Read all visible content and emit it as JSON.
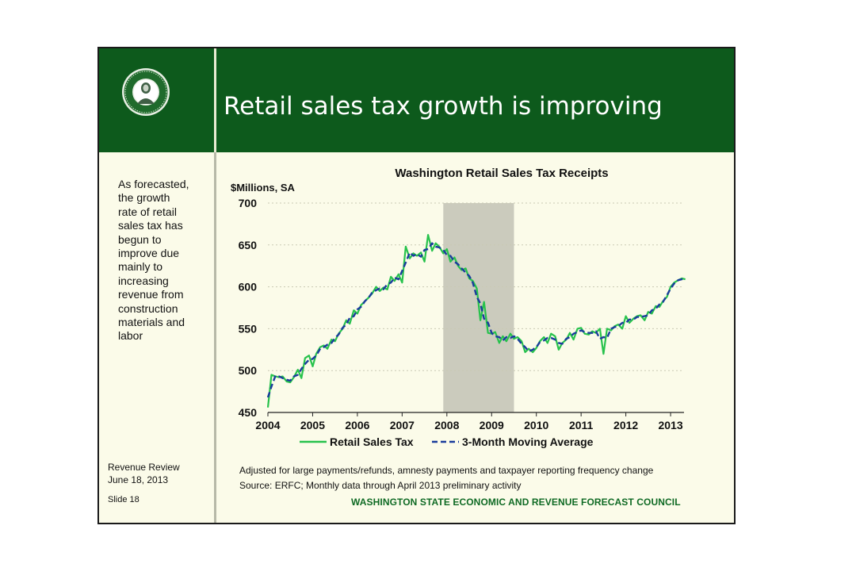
{
  "slide": {
    "title": "Retail sales tax growth is improving",
    "side_text": "As forecasted,\nthe growth\nrate of retail\nsales tax has\nbegun to\nimprove due\nmainly to\nincreasing\nrevenue from\nconstruction\nmaterials and\nlabor",
    "review_text": "Revenue Review\nJune 18, 2013",
    "slide_number": "Slide 18",
    "footnote_1": "Adjusted for large payments/refunds, amnesty payments and taxpayer reporting frequency change",
    "footnote_2": "Source: ERFC; Monthly data through April 2013 preliminary activity",
    "council": "WASHINGTON STATE ECONOMIC AND REVENUE FORECAST COUNCIL",
    "seal_icon": "washington-state-seal-icon",
    "colors": {
      "header_green": "#0d5a1c",
      "background": "#fbfbe9",
      "retail_line": "#27c24c",
      "moving_average": "#1a3c9c",
      "recession_band": "#cbcbbd"
    }
  },
  "chart_data": {
    "type": "line",
    "title": "Washington Retail Sales Tax Receipts",
    "ylabel": "$Millions, SA",
    "xlabel": "",
    "ylim": [
      450,
      700
    ],
    "yticks": [
      "450",
      "500",
      "550",
      "600",
      "650",
      "700"
    ],
    "xlim": [
      2004.0,
      2013.3
    ],
    "xticks": [
      "2004",
      "2005",
      "2006",
      "2007",
      "2008",
      "2009",
      "2010",
      "2011",
      "2012",
      "2013"
    ],
    "grid": true,
    "legend_position": "bottom",
    "shaded_regions": [
      {
        "x_start": 2007.92,
        "x_end": 2009.5
      }
    ],
    "series": [
      {
        "name": "Retail Sales Tax",
        "style": "solid",
        "points": [
          [
            2004.0,
            456
          ],
          [
            2004.08,
            495
          ],
          [
            2004.17,
            493
          ],
          [
            2004.25,
            492
          ],
          [
            2004.33,
            493
          ],
          [
            2004.42,
            487
          ],
          [
            2004.5,
            486
          ],
          [
            2004.58,
            492
          ],
          [
            2004.67,
            501
          ],
          [
            2004.75,
            491
          ],
          [
            2004.83,
            515
          ],
          [
            2004.92,
            518
          ],
          [
            2005.0,
            505
          ],
          [
            2005.08,
            520
          ],
          [
            2005.17,
            528
          ],
          [
            2005.25,
            530
          ],
          [
            2005.33,
            526
          ],
          [
            2005.42,
            537
          ],
          [
            2005.5,
            535
          ],
          [
            2005.58,
            544
          ],
          [
            2005.67,
            550
          ],
          [
            2005.75,
            560
          ],
          [
            2005.83,
            556
          ],
          [
            2005.92,
            572
          ],
          [
            2006.0,
            568
          ],
          [
            2006.08,
            578
          ],
          [
            2006.17,
            583
          ],
          [
            2006.25,
            587
          ],
          [
            2006.33,
            592
          ],
          [
            2006.42,
            600
          ],
          [
            2006.5,
            595
          ],
          [
            2006.58,
            599
          ],
          [
            2006.67,
            597
          ],
          [
            2006.75,
            612
          ],
          [
            2006.83,
            607
          ],
          [
            2006.92,
            615
          ],
          [
            2007.0,
            605
          ],
          [
            2007.08,
            648
          ],
          [
            2007.17,
            634
          ],
          [
            2007.25,
            640
          ],
          [
            2007.33,
            637
          ],
          [
            2007.42,
            641
          ],
          [
            2007.5,
            630
          ],
          [
            2007.58,
            662
          ],
          [
            2007.67,
            643
          ],
          [
            2007.75,
            652
          ],
          [
            2007.83,
            648
          ],
          [
            2007.92,
            640
          ],
          [
            2008.0,
            645
          ],
          [
            2008.08,
            630
          ],
          [
            2008.17,
            635
          ],
          [
            2008.25,
            625
          ],
          [
            2008.33,
            620
          ],
          [
            2008.42,
            622
          ],
          [
            2008.5,
            610
          ],
          [
            2008.58,
            607
          ],
          [
            2008.67,
            598
          ],
          [
            2008.75,
            560
          ],
          [
            2008.83,
            582
          ],
          [
            2008.92,
            545
          ],
          [
            2009.0,
            544
          ],
          [
            2009.08,
            546
          ],
          [
            2009.17,
            533
          ],
          [
            2009.25,
            541
          ],
          [
            2009.33,
            535
          ],
          [
            2009.42,
            544
          ],
          [
            2009.5,
            538
          ],
          [
            2009.58,
            540
          ],
          [
            2009.67,
            535
          ],
          [
            2009.75,
            522
          ],
          [
            2009.83,
            526
          ],
          [
            2009.92,
            522
          ],
          [
            2010.0,
            527
          ],
          [
            2010.08,
            535
          ],
          [
            2010.17,
            540
          ],
          [
            2010.25,
            533
          ],
          [
            2010.33,
            544
          ],
          [
            2010.42,
            541
          ],
          [
            2010.5,
            525
          ],
          [
            2010.58,
            533
          ],
          [
            2010.67,
            537
          ],
          [
            2010.75,
            545
          ],
          [
            2010.83,
            537
          ],
          [
            2010.92,
            550
          ],
          [
            2011.0,
            551
          ],
          [
            2011.08,
            544
          ],
          [
            2011.17,
            543
          ],
          [
            2011.25,
            547
          ],
          [
            2011.33,
            545
          ],
          [
            2011.42,
            550
          ],
          [
            2011.5,
            520
          ],
          [
            2011.58,
            550
          ],
          [
            2011.67,
            548
          ],
          [
            2011.75,
            553
          ],
          [
            2011.83,
            555
          ],
          [
            2011.92,
            550
          ],
          [
            2012.0,
            565
          ],
          [
            2012.08,
            557
          ],
          [
            2012.17,
            562
          ],
          [
            2012.25,
            565
          ],
          [
            2012.33,
            566
          ],
          [
            2012.42,
            560
          ],
          [
            2012.5,
            570
          ],
          [
            2012.58,
            568
          ],
          [
            2012.67,
            577
          ],
          [
            2012.75,
            576
          ],
          [
            2012.83,
            583
          ],
          [
            2012.92,
            588
          ],
          [
            2013.0,
            600
          ],
          [
            2013.08,
            605
          ],
          [
            2013.17,
            608
          ],
          [
            2013.25,
            610
          ],
          [
            2013.33,
            609
          ]
        ]
      },
      {
        "name": "3-Month Moving Average",
        "style": "dashed",
        "points": [
          [
            2004.0,
            468
          ],
          [
            2004.08,
            481
          ],
          [
            2004.17,
            494
          ],
          [
            2004.25,
            493
          ],
          [
            2004.33,
            491
          ],
          [
            2004.42,
            489
          ],
          [
            2004.5,
            488
          ],
          [
            2004.58,
            493
          ],
          [
            2004.67,
            495
          ],
          [
            2004.75,
            502
          ],
          [
            2004.83,
            508
          ],
          [
            2004.92,
            513
          ],
          [
            2005.0,
            514
          ],
          [
            2005.08,
            518
          ],
          [
            2005.17,
            526
          ],
          [
            2005.25,
            528
          ],
          [
            2005.33,
            531
          ],
          [
            2005.42,
            533
          ],
          [
            2005.5,
            539
          ],
          [
            2005.58,
            543
          ],
          [
            2005.67,
            551
          ],
          [
            2005.75,
            555
          ],
          [
            2005.83,
            563
          ],
          [
            2005.92,
            565
          ],
          [
            2006.0,
            573
          ],
          [
            2006.08,
            576
          ],
          [
            2006.17,
            583
          ],
          [
            2006.25,
            587
          ],
          [
            2006.33,
            593
          ],
          [
            2006.42,
            596
          ],
          [
            2006.5,
            598
          ],
          [
            2006.58,
            597
          ],
          [
            2006.67,
            603
          ],
          [
            2006.75,
            605
          ],
          [
            2006.83,
            611
          ],
          [
            2006.92,
            609
          ],
          [
            2007.0,
            619
          ],
          [
            2007.08,
            629
          ],
          [
            2007.17,
            641
          ],
          [
            2007.25,
            637
          ],
          [
            2007.33,
            639
          ],
          [
            2007.42,
            636
          ],
          [
            2007.5,
            644
          ],
          [
            2007.58,
            645
          ],
          [
            2007.67,
            652
          ],
          [
            2007.75,
            648
          ],
          [
            2007.83,
            647
          ],
          [
            2007.92,
            644
          ],
          [
            2008.0,
            638
          ],
          [
            2008.08,
            637
          ],
          [
            2008.17,
            630
          ],
          [
            2008.25,
            627
          ],
          [
            2008.33,
            622
          ],
          [
            2008.42,
            617
          ],
          [
            2008.5,
            613
          ],
          [
            2008.58,
            605
          ],
          [
            2008.67,
            588
          ],
          [
            2008.75,
            580
          ],
          [
            2008.83,
            562
          ],
          [
            2008.92,
            557
          ],
          [
            2009.0,
            545
          ],
          [
            2009.08,
            541
          ],
          [
            2009.17,
            540
          ],
          [
            2009.25,
            536
          ],
          [
            2009.33,
            540
          ],
          [
            2009.42,
            539
          ],
          [
            2009.5,
            541
          ],
          [
            2009.58,
            538
          ],
          [
            2009.67,
            532
          ],
          [
            2009.75,
            528
          ],
          [
            2009.83,
            523
          ],
          [
            2009.92,
            525
          ],
          [
            2010.0,
            528
          ],
          [
            2010.08,
            534
          ],
          [
            2010.17,
            536
          ],
          [
            2010.25,
            539
          ],
          [
            2010.33,
            539
          ],
          [
            2010.42,
            537
          ],
          [
            2010.5,
            533
          ],
          [
            2010.58,
            532
          ],
          [
            2010.67,
            538
          ],
          [
            2010.75,
            540
          ],
          [
            2010.83,
            544
          ],
          [
            2010.92,
            546
          ],
          [
            2011.0,
            548
          ],
          [
            2011.08,
            546
          ],
          [
            2011.17,
            545
          ],
          [
            2011.25,
            545
          ],
          [
            2011.33,
            547
          ],
          [
            2011.42,
            538
          ],
          [
            2011.5,
            540
          ],
          [
            2011.58,
            539
          ],
          [
            2011.67,
            550
          ],
          [
            2011.75,
            552
          ],
          [
            2011.83,
            553
          ],
          [
            2011.92,
            557
          ],
          [
            2012.0,
            557
          ],
          [
            2012.08,
            561
          ],
          [
            2012.17,
            561
          ],
          [
            2012.25,
            564
          ],
          [
            2012.33,
            564
          ],
          [
            2012.42,
            565
          ],
          [
            2012.5,
            566
          ],
          [
            2012.58,
            572
          ],
          [
            2012.67,
            574
          ],
          [
            2012.75,
            579
          ],
          [
            2012.83,
            582
          ],
          [
            2012.92,
            590
          ],
          [
            2013.0,
            598
          ],
          [
            2013.08,
            604
          ],
          [
            2013.17,
            608
          ],
          [
            2013.25,
            609
          ],
          [
            2013.33,
            610
          ]
        ]
      }
    ]
  }
}
